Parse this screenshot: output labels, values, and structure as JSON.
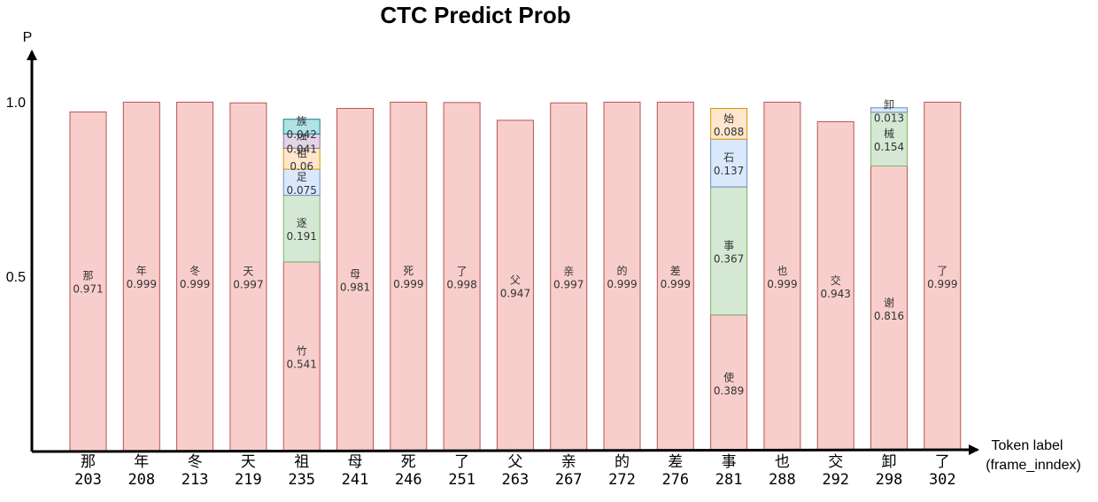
{
  "chart_data": {
    "type": "bar",
    "title": "CTC Predict Prob",
    "ylabel": "P",
    "xlabel": [
      "Token label",
      "(frame_inndex)"
    ],
    "yticks": [
      {
        "value": 1.0,
        "label": "1.0"
      },
      {
        "value": 0.5,
        "label": "0.5"
      }
    ],
    "bars": [
      {
        "token": "那",
        "frame": "203",
        "segments": [
          {
            "label": "那",
            "value": 0.971,
            "color": "pink"
          }
        ]
      },
      {
        "token": "年",
        "frame": "208",
        "segments": [
          {
            "label": "年",
            "value": 0.999,
            "color": "pink"
          }
        ]
      },
      {
        "token": "冬",
        "frame": "213",
        "segments": [
          {
            "label": "冬",
            "value": 0.999,
            "color": "pink"
          }
        ]
      },
      {
        "token": "天",
        "frame": "219",
        "segments": [
          {
            "label": "天",
            "value": 0.997,
            "color": "pink"
          }
        ]
      },
      {
        "token": "祖",
        "frame": "235",
        "segments": [
          {
            "label": "竹",
            "value": 0.541,
            "color": "pink"
          },
          {
            "label": "逐",
            "value": 0.191,
            "color": "green"
          },
          {
            "label": "足",
            "value": 0.075,
            "color": "blue"
          },
          {
            "label": "祖",
            "value": 0.06,
            "color": "orange"
          },
          {
            "label": "烛",
            "value": 0.041,
            "color": "purple"
          },
          {
            "label": "族",
            "value": 0.042,
            "color": "teal"
          }
        ]
      },
      {
        "token": "母",
        "frame": "241",
        "segments": [
          {
            "label": "母",
            "value": 0.981,
            "color": "pink"
          }
        ]
      },
      {
        "token": "死",
        "frame": "246",
        "segments": [
          {
            "label": "死",
            "value": 0.999,
            "color": "pink"
          }
        ]
      },
      {
        "token": "了",
        "frame": "251",
        "segments": [
          {
            "label": "了",
            "value": 0.998,
            "color": "pink"
          }
        ]
      },
      {
        "token": "父",
        "frame": "263",
        "segments": [
          {
            "label": "父",
            "value": 0.947,
            "color": "pink"
          }
        ]
      },
      {
        "token": "亲",
        "frame": "267",
        "segments": [
          {
            "label": "亲",
            "value": 0.997,
            "color": "pink"
          }
        ]
      },
      {
        "token": "的",
        "frame": "272",
        "segments": [
          {
            "label": "的",
            "value": 0.999,
            "color": "pink"
          }
        ]
      },
      {
        "token": "差",
        "frame": "276",
        "segments": [
          {
            "label": "差",
            "value": 0.999,
            "color": "pink"
          }
        ]
      },
      {
        "token": "事",
        "frame": "281",
        "segments": [
          {
            "label": "使",
            "value": 0.389,
            "color": "pink"
          },
          {
            "label": "事",
            "value": 0.367,
            "color": "green"
          },
          {
            "label": "石",
            "value": 0.137,
            "color": "blue"
          },
          {
            "label": "始",
            "value": 0.088,
            "color": "orange"
          }
        ]
      },
      {
        "token": "也",
        "frame": "288",
        "segments": [
          {
            "label": "也",
            "value": 0.999,
            "color": "pink"
          }
        ]
      },
      {
        "token": "交",
        "frame": "292",
        "segments": [
          {
            "label": "交",
            "value": 0.943,
            "color": "pink"
          }
        ]
      },
      {
        "token": "卸",
        "frame": "298",
        "segments": [
          {
            "label": "谢",
            "value": 0.816,
            "color": "pink"
          },
          {
            "label": "械",
            "value": 0.154,
            "color": "green"
          },
          {
            "label": "卸",
            "value": 0.013,
            "color": "blue"
          }
        ]
      },
      {
        "token": "了",
        "frame": "302",
        "segments": [
          {
            "label": "了",
            "value": 0.999,
            "color": "pink"
          }
        ]
      }
    ]
  },
  "colors": {
    "pink": {
      "fill": "#f8cecc",
      "stroke": "#b85450"
    },
    "green": {
      "fill": "#d5e8d4",
      "stroke": "#82b366"
    },
    "blue": {
      "fill": "#dae8fc",
      "stroke": "#6c8ebf"
    },
    "orange": {
      "fill": "#ffe6cc",
      "stroke": "#d79b00"
    },
    "purple": {
      "fill": "#e1d5e7",
      "stroke": "#9673a6"
    },
    "teal": {
      "fill": "#b0e3e6",
      "stroke": "#0e8088"
    }
  }
}
